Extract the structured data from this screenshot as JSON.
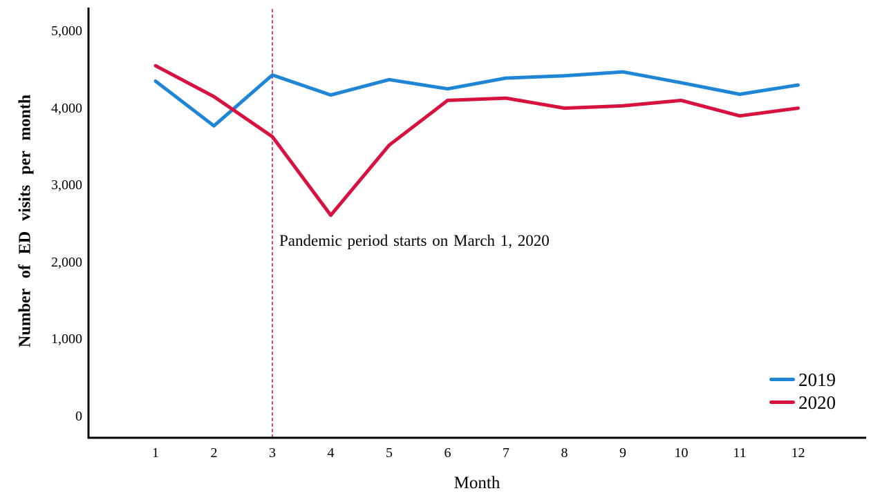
{
  "figure": {
    "background": "#ffffff",
    "axis_color": "#000000"
  },
  "chart_data": {
    "type": "line",
    "title": "",
    "xlabel": "Month",
    "ylabel": "Number of ED visits per month",
    "x": [
      1,
      2,
      3,
      4,
      5,
      6,
      7,
      8,
      9,
      10,
      11,
      12
    ],
    "xlim": [
      0,
      13
    ],
    "ylim": [
      0,
      5000
    ],
    "grid": false,
    "ytick_values": [
      0,
      1000,
      2000,
      3000,
      4000,
      5000
    ],
    "ytick_labels": [
      "0",
      "1,000",
      "2,000",
      "3,000",
      "4,000",
      "5,000"
    ],
    "series": [
      {
        "name": "2019",
        "color": "#1f86d6",
        "values": [
          4350,
          3770,
          4430,
          4170,
          4370,
          4250,
          4390,
          4420,
          4470,
          4330,
          4180,
          4300
        ]
      },
      {
        "name": "2020",
        "color": "#d8123f",
        "values": [
          4550,
          4150,
          3630,
          2610,
          3520,
          4100,
          4130,
          4000,
          4030,
          4100,
          3900,
          4000
        ]
      }
    ],
    "reference_line": {
      "x": 3,
      "style": "dashed",
      "color": "#e23b60"
    },
    "annotation": {
      "text": "Pandemic period starts on March 1, 2020"
    },
    "legend": {
      "position": "bottom-right",
      "entries": [
        "2019",
        "2020"
      ]
    }
  }
}
